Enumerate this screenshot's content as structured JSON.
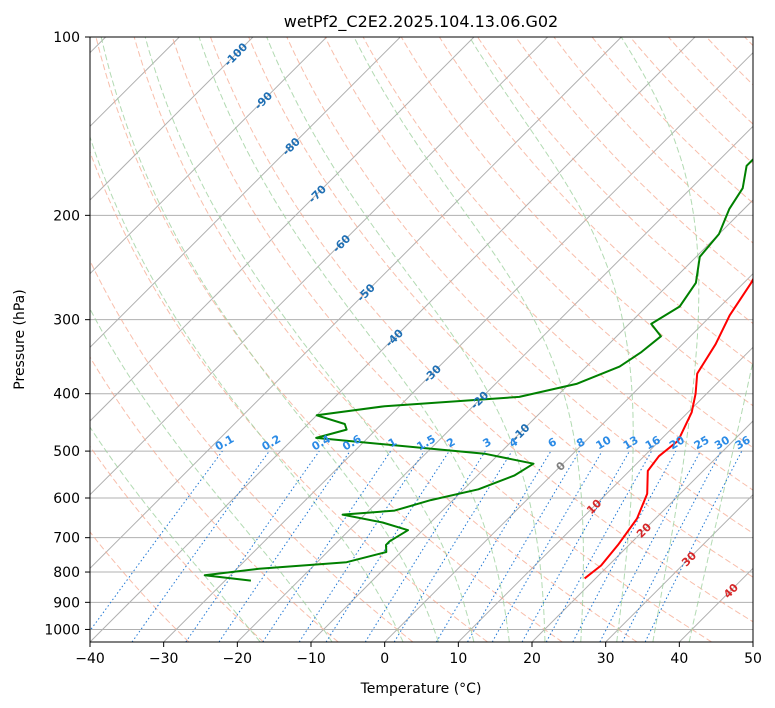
{
  "chart_data": {
    "type": "line",
    "title": "wetPf2_C2E2.2025.104.13.06.G02",
    "xlabel": "Temperature (°C)",
    "ylabel": "Pressure (hPa)",
    "xlim": [
      -40,
      50
    ],
    "ylim": [
      1050,
      100
    ],
    "y_scale": "log",
    "x_ticks": [
      -40,
      -30,
      -20,
      -10,
      0,
      10,
      20,
      30,
      40,
      50
    ],
    "x_tick_labels": [
      "−40",
      "−30",
      "−20",
      "−10",
      "0",
      "10",
      "20",
      "30",
      "40",
      "50"
    ],
    "y_ticks": [
      100,
      200,
      300,
      400,
      500,
      600,
      700,
      800,
      900,
      1000
    ],
    "y_tick_labels": [
      "100",
      "200",
      "300",
      "400",
      "500",
      "600",
      "700",
      "800",
      "900",
      "1000"
    ],
    "grid": true,
    "skew_deg": 45,
    "series": [
      {
        "color": "#ff0000",
        "points": [
          [
            18.5,
            820
          ],
          [
            19.0,
            780
          ],
          [
            18.5,
            720
          ],
          [
            17.5,
            650
          ],
          [
            15.5,
            590
          ],
          [
            12.5,
            540
          ],
          [
            12.0,
            510
          ],
          [
            12.5,
            480
          ],
          [
            10.5,
            430
          ],
          [
            8.5,
            400
          ],
          [
            6.0,
            370
          ],
          [
            4.5,
            330
          ],
          [
            2.5,
            295
          ],
          [
            1.0,
            260
          ],
          [
            -1.0,
            230
          ],
          [
            -2.0,
            210
          ],
          [
            -0.5,
            195
          ],
          [
            3.5,
            180
          ],
          [
            7.0,
            165
          ],
          [
            9.0,
            150
          ],
          [
            10.0,
            135
          ],
          [
            10.0,
            125
          ],
          [
            10.5,
            115
          ],
          [
            12.0,
            107
          ],
          [
            13.5,
            100
          ]
        ]
      },
      {
        "color": "#008000",
        "points": [
          [
            -26.5,
            827
          ],
          [
            -33.5,
            810
          ],
          [
            -27.0,
            790
          ],
          [
            -16.0,
            770
          ],
          [
            -12.0,
            740
          ],
          [
            -13.0,
            720
          ],
          [
            -13.0,
            710
          ],
          [
            -12.0,
            680
          ],
          [
            -16.5,
            660
          ],
          [
            -23.0,
            640
          ],
          [
            -16.5,
            630
          ],
          [
            -13.0,
            605
          ],
          [
            -8.0,
            580
          ],
          [
            -5.0,
            550
          ],
          [
            -4.0,
            525
          ],
          [
            -12.0,
            505
          ],
          [
            -37.0,
            475
          ],
          [
            -34.0,
            460
          ],
          [
            -35.0,
            450
          ],
          [
            -40.0,
            435
          ],
          [
            -32.0,
            420
          ],
          [
            -15.0,
            405
          ],
          [
            -9.0,
            385
          ],
          [
            -5.5,
            360
          ],
          [
            -4.5,
            340
          ],
          [
            -4.0,
            320
          ],
          [
            -7.0,
            305
          ],
          [
            -5.5,
            285
          ],
          [
            -6.5,
            260
          ],
          [
            -9.5,
            235
          ],
          [
            -10.0,
            215
          ],
          [
            -12.0,
            195
          ],
          [
            -13.0,
            180
          ],
          [
            -15.5,
            165
          ],
          [
            -15.5,
            150
          ],
          [
            -15.0,
            138
          ],
          [
            -16.0,
            128
          ],
          [
            -16.0,
            120
          ],
          [
            -17.5,
            112
          ],
          [
            -20.0,
            105
          ],
          [
            -21.5,
            100
          ]
        ]
      }
    ],
    "dry_adiabats_theta_c": [
      -30,
      -20,
      -10,
      0,
      10,
      20,
      30,
      40,
      50,
      60,
      70,
      80,
      90,
      100,
      110,
      120,
      130,
      140,
      150,
      160,
      170,
      180,
      190,
      200,
      210,
      220
    ],
    "moist_adiabats_c": [
      -20,
      -10,
      0,
      5,
      10,
      15,
      20,
      25,
      30,
      35,
      40
    ],
    "mixing_ratio_lines": [
      "0.1",
      "0.2",
      "0.4",
      "0.6",
      "1",
      "1.5",
      "2",
      "3",
      "4",
      "6",
      "8",
      "10",
      "13",
      "16",
      "20",
      "25",
      "30",
      "36"
    ],
    "isotherm_labels_blue": [
      "-100",
      "-90",
      "-80",
      "-70",
      "-60",
      "-50",
      "-40",
      "-30",
      "-20",
      "-10"
    ],
    "isotherm_labels_grey": [
      "0"
    ],
    "isotherm_labels_red": [
      "10",
      "20",
      "30",
      "40"
    ],
    "colors": {
      "temperature": "#ff0000",
      "dewpoint": "#008000",
      "isotherm": "#b0b0b0",
      "dry_adiabat": "#f6a88f",
      "moist_adiabat": "#9fd19f",
      "mixing_ratio": "#1f77d4",
      "label_cold": "#1f6fb4",
      "label_zero": "#808080",
      "label_warm": "#d62728"
    }
  }
}
